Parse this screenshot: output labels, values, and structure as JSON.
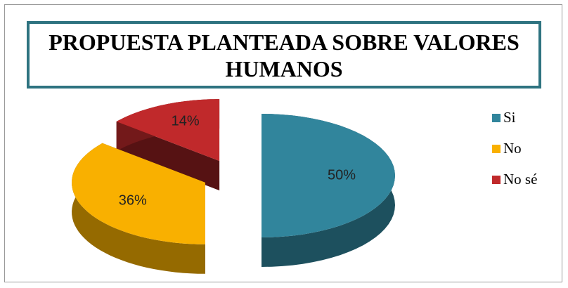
{
  "chart_data": {
    "type": "pie",
    "title": "PROPUESTA PLANTEADA SOBRE VALORES HUMANOS",
    "categories": [
      "Si",
      "No",
      "No sé"
    ],
    "values": [
      50,
      36,
      14
    ],
    "value_labels": [
      "50%",
      "36%",
      "14%"
    ],
    "colors": [
      "#31859c",
      "#f9b000",
      "#c0292b"
    ],
    "legend": "right"
  }
}
